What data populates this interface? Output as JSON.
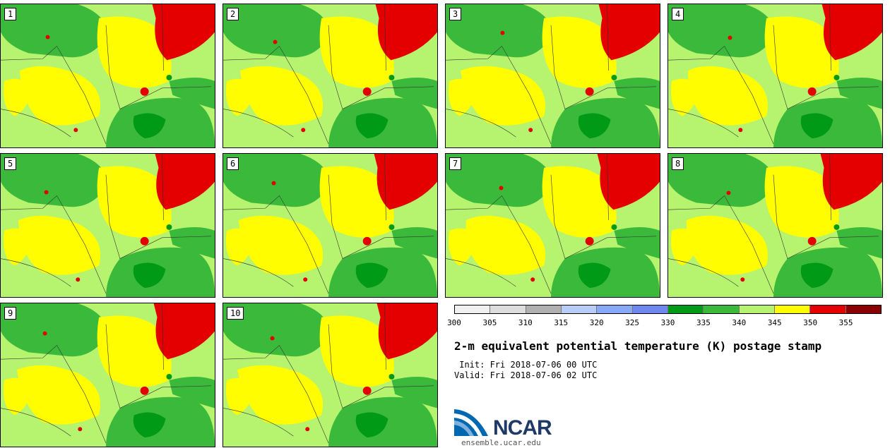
{
  "panels": [
    "1",
    "2",
    "3",
    "4",
    "5",
    "6",
    "7",
    "8",
    "9",
    "10"
  ],
  "colorbar": {
    "colors": [
      "#f0f0f0",
      "#dcdcdc",
      "#b0b0b0",
      "#b8ccf8",
      "#88a8f8",
      "#6e88f0",
      "#009a16",
      "#3bb93b",
      "#b6f36e",
      "#fffd00",
      "#e40000",
      "#8a0000"
    ],
    "ticks": [
      "300",
      "305",
      "310",
      "315",
      "320",
      "325",
      "330",
      "335",
      "340",
      "345",
      "350",
      "355"
    ]
  },
  "title": "2-m equivalent potential temperature (K) postage stamp",
  "init": " Init: Fri 2018-07-06 00 UTC",
  "valid": "Valid: Fri 2018-07-06 02 UTC",
  "logo": {
    "name": "NCAR",
    "url": "ensemble.ucar.edu"
  }
}
